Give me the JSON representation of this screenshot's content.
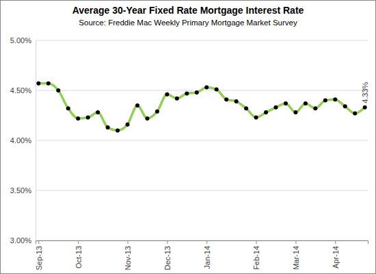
{
  "chart_data": {
    "type": "line",
    "title": "Average 30-Year Fixed Rate Mortgage Interest Rate",
    "subtitle": "Source: Freddie Mac Weekly Primary Mortgage Market Survey",
    "categories": [
      "Sep-13",
      null,
      null,
      null,
      "Oct-13",
      null,
      null,
      null,
      null,
      "Nov-13",
      null,
      null,
      null,
      "Dec-13",
      null,
      null,
      null,
      "Jan-14",
      null,
      null,
      null,
      null,
      "Feb-14",
      null,
      null,
      null,
      "Mar-14",
      null,
      null,
      null,
      "Apr-14",
      null,
      null,
      null
    ],
    "values": [
      4.57,
      4.57,
      4.5,
      4.32,
      4.22,
      4.23,
      4.28,
      4.13,
      4.1,
      4.16,
      4.35,
      4.22,
      4.29,
      4.46,
      4.42,
      4.47,
      4.48,
      4.53,
      4.51,
      4.41,
      4.39,
      4.32,
      4.23,
      4.28,
      4.33,
      4.37,
      4.28,
      4.37,
      4.32,
      4.4,
      4.41,
      4.34,
      4.27,
      4.33
    ],
    "value_labels": [
      null,
      null,
      null,
      null,
      null,
      null,
      null,
      null,
      null,
      null,
      null,
      null,
      null,
      null,
      null,
      null,
      null,
      null,
      null,
      null,
      null,
      null,
      null,
      null,
      null,
      null,
      null,
      null,
      null,
      null,
      null,
      null,
      null,
      "4.33%"
    ],
    "color": "#92d050",
    "marker": "circle",
    "ylim": [
      3,
      5
    ],
    "yticks": [
      {
        "value": 3,
        "label": "3.00%"
      },
      {
        "value": 3.5,
        "label": "3.50%"
      },
      {
        "value": 4,
        "label": "4.00%"
      },
      {
        "value": 4.5,
        "label": "4.50%"
      },
      {
        "value": 5,
        "label": "5.00%"
      }
    ],
    "grid": true
  }
}
